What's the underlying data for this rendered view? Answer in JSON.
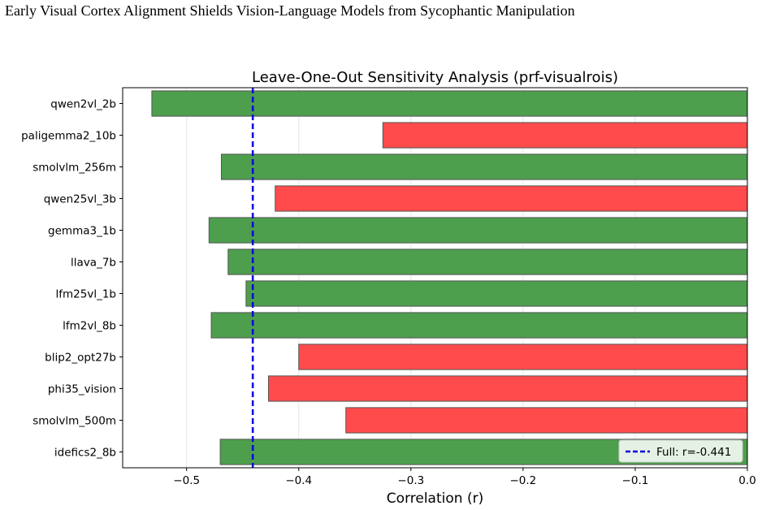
{
  "page_title": "Early Visual Cortex Alignment Shields Vision-Language Models from Sycophantic Manipulation",
  "colors": {
    "positive_bar": "#4d9e4d",
    "negative_bar": "#ff4b4b",
    "reference_line": "#0000dd",
    "bar_edge": "#555555",
    "grid": "#e6e6e6"
  },
  "chart_data": {
    "type": "bar",
    "orientation": "horizontal",
    "title": "Leave-One-Out Sensitivity Analysis (prf-visualrois)",
    "xlabel": "Correlation (r)",
    "ylabel": "",
    "xlim": [
      -0.557,
      0.0
    ],
    "xticks": [
      -0.5,
      -0.4,
      -0.3,
      -0.2,
      -0.1,
      0.0
    ],
    "xtick_labels": [
      "−0.5",
      "−0.4",
      "−0.3",
      "−0.2",
      "−0.1",
      "0.0"
    ],
    "grid": "vertical",
    "categories": [
      "qwen2vl_2b",
      "paligemma2_10b",
      "smolvlm_256m",
      "qwen25vl_3b",
      "gemma3_1b",
      "llava_7b",
      "lfm25vl_1b",
      "lfm2vl_8b",
      "blip2_opt27b",
      "phi35_vision",
      "smolvlm_500m",
      "idefics2_8b"
    ],
    "values": [
      -0.531,
      -0.325,
      -0.469,
      -0.421,
      -0.48,
      -0.463,
      -0.447,
      -0.478,
      -0.4,
      -0.427,
      -0.358,
      -0.47
    ],
    "bar_colors": [
      "green",
      "red",
      "green",
      "red",
      "green",
      "green",
      "green",
      "green",
      "red",
      "red",
      "red",
      "green"
    ],
    "reference_line": {
      "value": -0.441,
      "label": "Full: r=-0.441"
    },
    "legend": {
      "position": "bottom-right",
      "entries": [
        "Full: r=-0.441"
      ]
    }
  }
}
